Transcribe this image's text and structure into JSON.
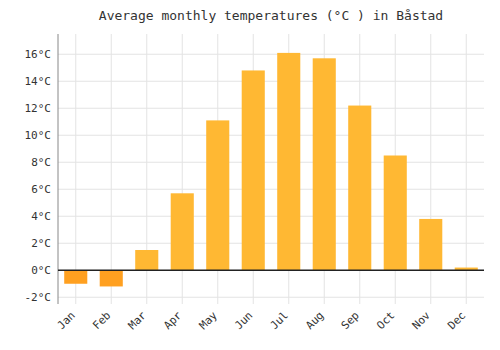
{
  "chart_data": {
    "type": "bar",
    "title": "Average monthly temperatures (°C ) in Båstad",
    "categories": [
      "Jan",
      "Feb",
      "Mar",
      "Apr",
      "May",
      "Jun",
      "Jul",
      "Aug",
      "Sep",
      "Oct",
      "Nov",
      "Dec"
    ],
    "values": [
      -1.0,
      -1.2,
      1.5,
      5.7,
      11.1,
      14.8,
      16.1,
      15.7,
      12.2,
      8.5,
      3.8,
      0.2
    ],
    "colors": [
      "#FFA020",
      "#FFA020",
      "#FFB833",
      "#FFB833",
      "#FFB833",
      "#FFB833",
      "#FFB833",
      "#FFB833",
      "#FFB833",
      "#FFB833",
      "#FFB833",
      "#FFB833"
    ],
    "ylim": [
      -2.5,
      17.5
    ],
    "yticks": [
      {
        "value": -2,
        "label": "-2°C"
      },
      {
        "value": 0,
        "label": "0°C"
      },
      {
        "value": 2,
        "label": "2°C"
      },
      {
        "value": 4,
        "label": "4°C"
      },
      {
        "value": 6,
        "label": "6°C"
      },
      {
        "value": 8,
        "label": "8°C"
      },
      {
        "value": 10,
        "label": "10°C"
      },
      {
        "value": 12,
        "label": "12°C"
      },
      {
        "value": 14,
        "label": "14°C"
      },
      {
        "value": 16,
        "label": "16°C"
      }
    ],
    "grid": true
  }
}
